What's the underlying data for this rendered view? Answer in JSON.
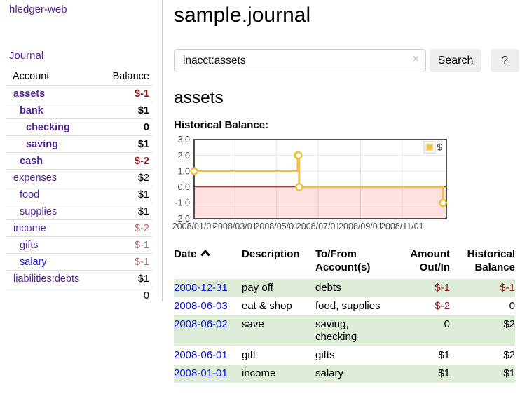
{
  "app_title": "hledger-web",
  "sidebar": {
    "journal_link": "Journal",
    "accounts": {
      "header": {
        "account": "Account",
        "balance": "Balance"
      },
      "rows": [
        {
          "name": "assets",
          "depth": 0,
          "bold": true,
          "balance": "$-1",
          "balance_tone": "neg-strong"
        },
        {
          "name": "bank",
          "depth": 1,
          "bold": true,
          "balance": "$1",
          "balance_tone": "pos"
        },
        {
          "name": "checking",
          "depth": 2,
          "bold": true,
          "balance": "0",
          "balance_tone": "pos"
        },
        {
          "name": "saving",
          "depth": 2,
          "bold": true,
          "balance": "$1",
          "balance_tone": "pos"
        },
        {
          "name": "cash",
          "depth": 1,
          "bold": true,
          "balance": "$-2",
          "balance_tone": "neg-strong"
        },
        {
          "name": "expenses",
          "depth": 0,
          "bold": false,
          "balance": "$2",
          "balance_tone": "pos"
        },
        {
          "name": "food",
          "depth": 1,
          "bold": false,
          "balance": "$1",
          "balance_tone": "pos"
        },
        {
          "name": "supplies",
          "depth": 1,
          "bold": false,
          "balance": "$1",
          "balance_tone": "pos"
        },
        {
          "name": "income",
          "depth": 0,
          "bold": false,
          "balance": "$-2",
          "balance_tone": "neg-light"
        },
        {
          "name": "gifts",
          "depth": 1,
          "bold": false,
          "balance": "$-1",
          "balance_tone": "neg-light"
        },
        {
          "name": "salary",
          "depth": 1,
          "bold": false,
          "balance": "$-1",
          "balance_tone": "neg-light",
          "link_tone": "blue"
        },
        {
          "name": "liabilities:debts",
          "depth": 0,
          "bold": false,
          "balance": "$1",
          "balance_tone": "pos"
        }
      ],
      "total": "0"
    }
  },
  "header": {
    "title": "sample.journal"
  },
  "search": {
    "value": "inacct:assets",
    "clear_label": "×",
    "submit_label": "Search",
    "help_label": "?"
  },
  "register": {
    "heading": "assets",
    "chart_heading": "Historical Balance:",
    "columns": [
      "Date",
      "Description",
      "To/From Account(s)",
      "Amount Out/In",
      "Historical Balance"
    ],
    "rows": [
      {
        "date": "2008-12-31",
        "description": "pay off",
        "accounts": "debts",
        "amount": "$-1",
        "amount_tone": "neg",
        "balance": "$-1",
        "balance_tone": "neg"
      },
      {
        "date": "2008-06-03",
        "description": "eat & shop",
        "accounts": "food, supplies",
        "amount": "$-2",
        "amount_tone": "neg",
        "balance": "0",
        "balance_tone": "pos"
      },
      {
        "date": "2008-06-02",
        "description": "save",
        "accounts": "saving,\nchecking",
        "amount": "0",
        "amount_tone": "pos",
        "balance": "$2",
        "balance_tone": "pos"
      },
      {
        "date": "2008-06-01",
        "description": "gift",
        "accounts": "gifts",
        "amount": "$1",
        "amount_tone": "pos",
        "balance": "$2",
        "balance_tone": "pos"
      },
      {
        "date": "2008-01-01",
        "description": "income",
        "accounts": "salary",
        "amount": "$1",
        "amount_tone": "pos",
        "balance": "$1",
        "balance_tone": "pos"
      }
    ]
  },
  "chart_data": {
    "type": "line",
    "step": true,
    "title": "Historical Balance:",
    "series": [
      {
        "name": "$",
        "x": [
          "2008-01-01",
          "2008-06-01",
          "2008-06-02",
          "2008-06-03",
          "2008-12-31"
        ],
        "values": [
          1,
          2,
          2,
          0,
          -1
        ]
      }
    ],
    "ylim": [
      -2,
      3
    ],
    "xrange": [
      "2008-01-01",
      "2009-01-05"
    ],
    "ytick_labels": [
      "3.0",
      "2.0",
      "1.0",
      "0.0",
      "-1.0",
      "-2.0"
    ],
    "xtick_labels": [
      "2008/01/01",
      "2008/03/01",
      "2008/05/01",
      "2008/07/01",
      "2008/09/01",
      "2008/11/01"
    ],
    "legend_position": "top-right",
    "grid": true,
    "colors": {
      "line": "#edc240",
      "marker_fill": "#ffffff",
      "negative_region": "rgba(255,0,0,0.12)",
      "zero_line": "#8b0000",
      "grid": "#e4e4e4",
      "border": "#4d4d4d",
      "tick_text": "#4a4a4a",
      "legend_swatch_border": "#ccc"
    }
  }
}
